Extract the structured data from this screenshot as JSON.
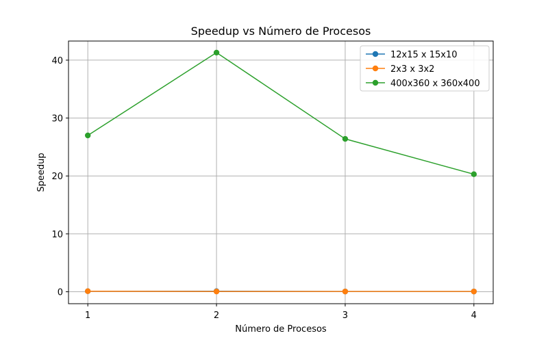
{
  "chart_data": {
    "type": "line",
    "title": "Speedup vs Número de Procesos",
    "xlabel": "Número de Procesos",
    "ylabel": "Speedup",
    "x": [
      1,
      2,
      3,
      4
    ],
    "xlim": [
      0.85,
      4.15
    ],
    "ylim": [
      -2.06,
      43.3
    ],
    "xticks": [
      "1",
      "2",
      "3",
      "4"
    ],
    "yticks": [
      "0",
      "10",
      "20",
      "30",
      "40"
    ],
    "grid": true,
    "legend_position": "top-right",
    "series": [
      {
        "name": "12x15 x 15x10",
        "color": "#1f77b4",
        "values": [
          0.1,
          0.1,
          0.05,
          0.05
        ]
      },
      {
        "name": "2x3 x 3x2",
        "color": "#ff7f0e",
        "values": [
          0.1,
          0.05,
          0.05,
          0.05
        ]
      },
      {
        "name": "400x360 x 360x400",
        "color": "#2ca02c",
        "values": [
          27.0,
          41.3,
          26.4,
          20.3
        ]
      }
    ]
  }
}
